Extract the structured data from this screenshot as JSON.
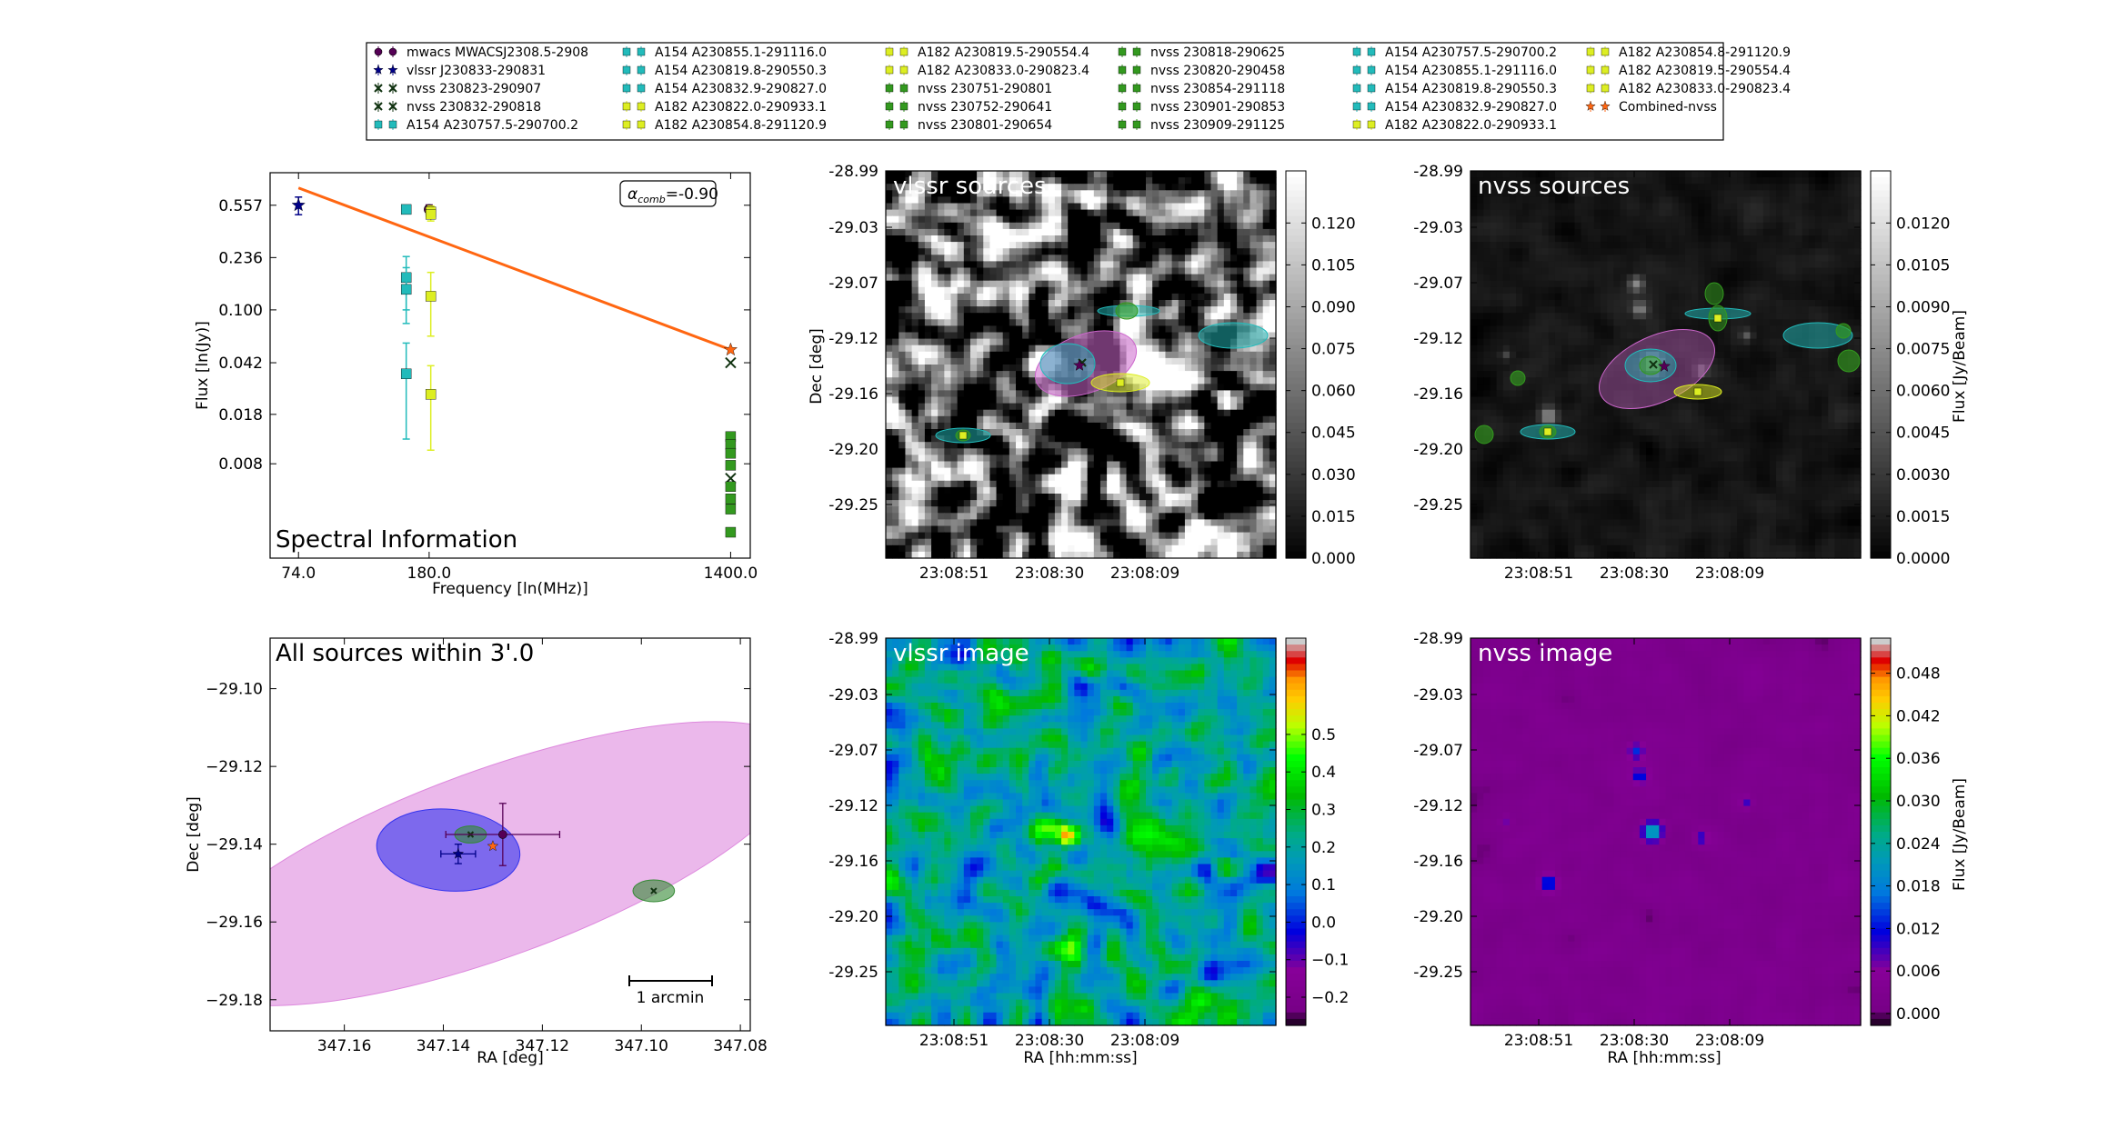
{
  "legend": {
    "entries": [
      {
        "label": "mwacs MWACSJ2308.5-2908",
        "color": "#550055",
        "marker": "o"
      },
      {
        "label": "vlssr J230833-290831",
        "color": "#000088",
        "marker": "*"
      },
      {
        "label": "nvss 230823-290907",
        "color": "#113311",
        "marker": "x"
      },
      {
        "label": "nvss 230832-290818",
        "color": "#113311",
        "marker": "x"
      },
      {
        "label": "A154 A230757.5-290700.2",
        "color": "#22bbbb",
        "marker": "s"
      },
      {
        "label": "A154 A230855.1-291116.0",
        "color": "#22bbbb",
        "marker": "s"
      },
      {
        "label": "A154 A230819.8-290550.3",
        "color": "#22bbbb",
        "marker": "s"
      },
      {
        "label": "A154 A230832.9-290827.0",
        "color": "#22bbbb",
        "marker": "s"
      },
      {
        "label": "A182 A230822.0-290933.1",
        "color": "#ddee22",
        "marker": "s"
      },
      {
        "label": "A182 A230854.8-291120.9",
        "color": "#ddee22",
        "marker": "s"
      },
      {
        "label": "A182 A230819.5-290554.4",
        "color": "#ddee22",
        "marker": "s"
      },
      {
        "label": "A182 A230833.0-290823.4",
        "color": "#ddee22",
        "marker": "s"
      },
      {
        "label": "nvss 230751-290801",
        "color": "#33991f",
        "marker": "s"
      },
      {
        "label": "nvss 230752-290641",
        "color": "#33991f",
        "marker": "s"
      },
      {
        "label": "nvss 230801-290654",
        "color": "#33991f",
        "marker": "s"
      },
      {
        "label": "nvss 230818-290625",
        "color": "#33991f",
        "marker": "s"
      },
      {
        "label": "nvss 230820-290458",
        "color": "#33991f",
        "marker": "s"
      },
      {
        "label": "nvss 230854-291118",
        "color": "#33991f",
        "marker": "s"
      },
      {
        "label": "nvss 230901-290853",
        "color": "#33991f",
        "marker": "s"
      },
      {
        "label": "nvss 230909-291125",
        "color": "#33991f",
        "marker": "s"
      },
      {
        "label": "A154 A230757.5-290700.2",
        "color": "#22bbbb",
        "marker": "s"
      },
      {
        "label": "A154 A230855.1-291116.0",
        "color": "#22bbbb",
        "marker": "s"
      },
      {
        "label": "A154 A230819.8-290550.3",
        "color": "#22bbbb",
        "marker": "s"
      },
      {
        "label": "A154 A230832.9-290827.0",
        "color": "#22bbbb",
        "marker": "s"
      },
      {
        "label": "A182 A230822.0-290933.1",
        "color": "#ddee22",
        "marker": "s"
      },
      {
        "label": "A182 A230854.8-291120.9",
        "color": "#ddee22",
        "marker": "s"
      },
      {
        "label": "A182 A230819.5-290554.4",
        "color": "#ddee22",
        "marker": "s"
      },
      {
        "label": "A182 A230833.0-290823.4",
        "color": "#ddee22",
        "marker": "s"
      },
      {
        "label": "Combined-nvss",
        "color": "#ff6611",
        "marker": "*"
      }
    ]
  },
  "chart_data": [
    {
      "id": "spectral",
      "type": "scatter",
      "title": "Spectral Information",
      "xlabel": "Frequency [ln(MHz)]",
      "ylabel": "Flux [ln(Jy)]",
      "x_scale": "log",
      "y_scale": "log",
      "xlim": [
        61,
        1600
      ],
      "ylim": [
        0.0017,
        0.95
      ],
      "x_ticks": [
        74,
        180,
        1400
      ],
      "x_tick_labels": [
        "74.0",
        "180.0",
        "1400.0"
      ],
      "y_ticks": [
        0.557,
        0.236,
        0.1,
        0.042,
        0.018,
        0.008
      ],
      "y_tick_labels": [
        "0.557",
        "0.236",
        "0.100",
        "0.042",
        "0.018",
        "0.008"
      ],
      "annotation": {
        "symbol": "α",
        "subscript": "comb",
        "value": "=-0.90"
      },
      "fit_line": {
        "x": [
          74,
          1400
        ],
        "y": [
          0.74,
          0.052
        ],
        "color": "#ff6611"
      },
      "series": [
        {
          "name": "mwacs MWACSJ2308.5-2908",
          "color": "#550055",
          "marker": "o",
          "points": [
            {
              "x": 180,
              "y": 0.52,
              "err": 0.04
            }
          ]
        },
        {
          "name": "vlssr J230833-290831",
          "color": "#000088",
          "marker": "*",
          "points": [
            {
              "x": 74,
              "y": 0.557,
              "err": 0.08
            }
          ]
        },
        {
          "name": "nvss 230823-290907",
          "color": "#113311",
          "marker": "x",
          "points": [
            {
              "x": 1400,
              "y": 0.042
            }
          ]
        },
        {
          "name": "nvss 230832-290818",
          "color": "#113311",
          "marker": "x",
          "points": [
            {
              "x": 1400,
              "y": 0.0063
            }
          ]
        },
        {
          "name": "A154",
          "color": "#22bbbb",
          "marker": "s",
          "points": [
            {
              "x": 154,
              "y": 0.52,
              "err": 0.03
            },
            {
              "x": 154,
              "y": 0.17,
              "err": 0.07
            },
            {
              "x": 154,
              "y": 0.14,
              "err": 0.06
            },
            {
              "x": 154,
              "y": 0.035,
              "err": 0.023
            }
          ]
        },
        {
          "name": "A182",
          "color": "#ddee22",
          "marker": "s",
          "points": [
            {
              "x": 182,
              "y": 0.5,
              "err": 0.05
            },
            {
              "x": 182,
              "y": 0.48,
              "err": 0.05
            },
            {
              "x": 182,
              "y": 0.125,
              "err": 0.06
            },
            {
              "x": 182,
              "y": 0.025,
              "err": 0.015
            }
          ]
        },
        {
          "name": "nvss",
          "color": "#33991f",
          "marker": "s",
          "points": [
            {
              "x": 1400,
              "y": 0.0125
            },
            {
              "x": 1400,
              "y": 0.011
            },
            {
              "x": 1400,
              "y": 0.0095
            },
            {
              "x": 1400,
              "y": 0.0078
            },
            {
              "x": 1400,
              "y": 0.0055
            },
            {
              "x": 1400,
              "y": 0.0045
            },
            {
              "x": 1400,
              "y": 0.0038
            },
            {
              "x": 1400,
              "y": 0.0026
            }
          ]
        },
        {
          "name": "Combined-nvss",
          "color": "#ff6611",
          "marker": "*",
          "points": [
            {
              "x": 1400,
              "y": 0.052
            }
          ]
        }
      ]
    },
    {
      "id": "vlssr_sources",
      "type": "heatmap",
      "title": "vlssr sources",
      "ylabel": "Dec [deg]",
      "cmap": "gray",
      "y_tick_labels": [
        "-28.99",
        "-29.03",
        "-29.07",
        "-29.12",
        "-29.16",
        "-29.20",
        "-29.25"
      ],
      "x_tick_labels": [
        "23:08:51",
        "23:08:30",
        "23:08:09"
      ],
      "colorbar": {
        "ticks": [
          "0.000",
          "0.015",
          "0.030",
          "0.045",
          "0.060",
          "0.075",
          "0.090",
          "0.105",
          "0.120"
        ],
        "max": 0.13
      }
    },
    {
      "id": "nvss_sources",
      "type": "heatmap",
      "title": "nvss sources",
      "cmap": "gray",
      "y_tick_labels": [
        "-28.99",
        "-29.03",
        "-29.07",
        "-29.12",
        "-29.16",
        "-29.20",
        "-29.25"
      ],
      "x_tick_labels": [
        "23:08:51",
        "23:08:30",
        "23:08:09"
      ],
      "colorbar": {
        "label": "Flux [Jy/Beam]",
        "ticks": [
          "0.0000",
          "0.0015",
          "0.0030",
          "0.0045",
          "0.0060",
          "0.0075",
          "0.0090",
          "0.0105",
          "0.0120"
        ],
        "max": 0.0132
      }
    },
    {
      "id": "all_sources",
      "type": "scatter",
      "title": "All sources within 3'.0",
      "xlabel": "RA [deg]",
      "ylabel": "Dec [deg]",
      "xlim": [
        347.175,
        347.078
      ],
      "ylim": [
        -29.188,
        -29.087
      ],
      "x_ticks": [
        347.16,
        347.14,
        347.12,
        347.1,
        347.08
      ],
      "x_tick_labels": [
        "347.16",
        "347.14",
        "347.12",
        "347.10",
        "347.08"
      ],
      "y_ticks": [
        -29.1,
        -29.12,
        -29.14,
        -29.16,
        -29.18
      ],
      "y_tick_labels": [
        "−29.10",
        "−29.12",
        "−29.14",
        "−29.16",
        "−29.18"
      ],
      "scalebar": "1 arcmin",
      "ellipses": [
        {
          "source": "mwacs",
          "cx": 347.13,
          "cy": -29.145,
          "rx": 0.066,
          "ry": 0.024,
          "angle": -20,
          "color": "#dd88dd"
        },
        {
          "source": "vlssr",
          "cx": 347.139,
          "cy": -29.1415,
          "rx": 0.0145,
          "ry": 0.0105,
          "angle": 5,
          "color": "#3333ee"
        },
        {
          "source": "nvss 230823-290907",
          "cx": 347.0975,
          "cy": -29.152,
          "rx": 0.0042,
          "ry": 0.0028,
          "angle": 0,
          "color": "#338833"
        },
        {
          "source": "nvss 230832-290818",
          "cx": 347.1345,
          "cy": -29.1375,
          "rx": 0.0032,
          "ry": 0.0022,
          "angle": 0,
          "color": "#338833"
        }
      ],
      "points": [
        {
          "source": "mwacs",
          "x": 347.128,
          "y": -29.1375,
          "xerr": 0.0115,
          "yerr": 0.008,
          "color": "#550055"
        },
        {
          "source": "vlssr",
          "x": 347.137,
          "y": -29.1425,
          "xerr": 0.0035,
          "yerr": 0.0025,
          "color": "#000088"
        },
        {
          "source": "Combined-nvss",
          "x": 347.13,
          "y": -29.1405,
          "color": "#ff6611"
        }
      ]
    },
    {
      "id": "vlssr_image",
      "type": "heatmap",
      "title": "vlssr image",
      "xlabel": "RA [hh:mm:ss]",
      "cmap": "spectral",
      "y_tick_labels": [
        "-28.99",
        "-29.03",
        "-29.07",
        "-29.12",
        "-29.16",
        "-29.20",
        "-29.25"
      ],
      "x_tick_labels": [
        "23:08:51",
        "23:08:30",
        "23:08:09"
      ],
      "colorbar": {
        "ticks": [
          "−0.2",
          "−0.1",
          "0.0",
          "0.1",
          "0.2",
          "0.3",
          "0.4",
          "0.5"
        ],
        "min": -0.28,
        "max": 0.53
      }
    },
    {
      "id": "nvss_image",
      "type": "heatmap",
      "title": "nvss image",
      "xlabel": "RA [hh:mm:ss]",
      "cmap": "spectral",
      "y_tick_labels": [
        "-28.99",
        "-29.03",
        "-29.07",
        "-29.12",
        "-29.16",
        "-29.20",
        "-29.25"
      ],
      "x_tick_labels": [
        "23:08:51",
        "23:08:30",
        "23:08:09"
      ],
      "colorbar": {
        "label": "Flux [Jy/Beam]",
        "ticks": [
          "0.000",
          "0.006",
          "0.012",
          "0.018",
          "0.024",
          "0.030",
          "0.036",
          "0.042",
          "0.048"
        ],
        "min": -0.002,
        "max": 0.053
      }
    }
  ]
}
